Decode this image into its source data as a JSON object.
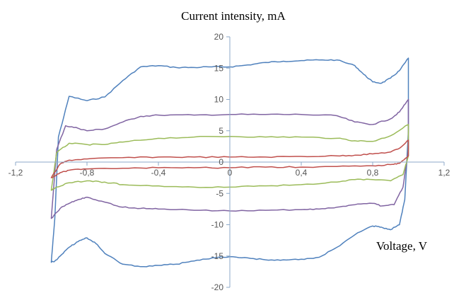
{
  "chart_data": {
    "type": "line",
    "title": "",
    "xlabel": "Voltage, V",
    "ylabel": "Current intensity, mA",
    "xlim": [
      -1.2,
      1.2
    ],
    "ylim": [
      -20,
      20
    ],
    "x_tick_labels": [
      "-1,2",
      "-0,8",
      "-0,4",
      "0",
      "0,4",
      "0,8",
      "1,2"
    ],
    "y_tick_labels": [
      "20",
      "15",
      "10",
      "5",
      "0",
      "-5",
      "-10",
      "-15",
      "-20"
    ],
    "grid": false,
    "legend": "none",
    "colors": {
      "axis": "#8eaac8",
      "blue": "#4f81bd",
      "purple": "#8064a2",
      "green": "#9bbb59",
      "red": "#c0504d"
    },
    "series": [
      {
        "color": "blue",
        "x": [
          -1.0,
          -0.98,
          -0.96,
          -0.9,
          -0.8,
          -0.7,
          -0.6,
          -0.5,
          -0.4,
          -0.3,
          -0.2,
          -0.1,
          0.0,
          0.1,
          0.2,
          0.3,
          0.4,
          0.5,
          0.6,
          0.7,
          0.75,
          0.8,
          0.85,
          0.9,
          0.95,
          1.0,
          1.0,
          0.98,
          0.95,
          0.9,
          0.85,
          0.8,
          0.7,
          0.6,
          0.5,
          0.4,
          0.3,
          0.2,
          0.1,
          0.0,
          -0.1,
          -0.2,
          -0.3,
          -0.4,
          -0.5,
          -0.6,
          -0.7,
          -0.75,
          -0.8,
          -0.85,
          -0.9,
          -0.95,
          -0.98,
          -1.0
        ],
        "y": [
          -16.0,
          -9.0,
          4.0,
          10.5,
          9.8,
          10.4,
          13.0,
          15.2,
          15.4,
          15.1,
          15.1,
          15.2,
          15.2,
          15.5,
          15.9,
          16.1,
          16.2,
          16.3,
          16.3,
          15.4,
          14.0,
          12.8,
          12.6,
          13.4,
          14.6,
          16.6,
          5.0,
          -6.0,
          -10.0,
          -10.8,
          -10.4,
          -10.2,
          -11.6,
          -13.6,
          -15.2,
          -15.5,
          -15.6,
          -15.6,
          -15.3,
          -15.1,
          -15.3,
          -15.8,
          -16.3,
          -16.5,
          -16.7,
          -16.3,
          -14.6,
          -13.0,
          -12.1,
          -12.7,
          -13.6,
          -15.0,
          -15.8,
          -16.0
        ]
      },
      {
        "color": "purple",
        "x": [
          -1.0,
          -0.97,
          -0.92,
          -0.85,
          -0.8,
          -0.7,
          -0.6,
          -0.5,
          -0.4,
          -0.2,
          0.0,
          0.2,
          0.4,
          0.6,
          0.7,
          0.8,
          0.9,
          0.95,
          1.0,
          1.0,
          0.97,
          0.92,
          0.85,
          0.8,
          0.7,
          0.6,
          0.5,
          0.4,
          0.2,
          0.0,
          -0.2,
          -0.4,
          -0.5,
          -0.6,
          -0.7,
          -0.8,
          -0.85,
          -0.9,
          -0.95,
          -1.0
        ],
        "y": [
          -9.0,
          2.0,
          5.8,
          5.4,
          5.0,
          5.3,
          6.4,
          7.3,
          7.5,
          7.5,
          7.6,
          7.6,
          7.6,
          7.4,
          6.4,
          6.0,
          6.9,
          8.0,
          10.0,
          2.0,
          -4.0,
          -6.8,
          -7.0,
          -6.6,
          -6.8,
          -7.2,
          -7.5,
          -7.6,
          -7.7,
          -7.8,
          -7.7,
          -7.5,
          -7.4,
          -7.2,
          -6.4,
          -5.6,
          -6.0,
          -6.6,
          -7.4,
          -9.0
        ]
      },
      {
        "color": "green",
        "x": [
          -1.0,
          -0.97,
          -0.9,
          -0.8,
          -0.7,
          -0.6,
          -0.4,
          -0.2,
          0.0,
          0.2,
          0.4,
          0.6,
          0.7,
          0.8,
          0.9,
          1.0,
          1.0,
          0.97,
          0.9,
          0.8,
          0.7,
          0.6,
          0.4,
          0.2,
          0.0,
          -0.2,
          -0.4,
          -0.6,
          -0.7,
          -0.8,
          -0.9,
          -0.97,
          -1.0
        ],
        "y": [
          -4.5,
          1.5,
          3.0,
          2.8,
          2.8,
          3.2,
          3.8,
          4.0,
          4.1,
          4.0,
          4.0,
          3.8,
          3.4,
          3.3,
          4.2,
          6.0,
          1.0,
          -2.0,
          -3.0,
          -2.8,
          -2.8,
          -3.2,
          -3.6,
          -3.8,
          -4.0,
          -4.0,
          -3.8,
          -3.6,
          -3.2,
          -3.0,
          -3.3,
          -4.0,
          -4.5
        ]
      },
      {
        "color": "red",
        "x": [
          -1.0,
          -0.95,
          -0.9,
          -0.8,
          -0.6,
          -0.4,
          -0.2,
          0.0,
          0.2,
          0.4,
          0.6,
          0.7,
          0.8,
          0.9,
          0.95,
          1.0,
          1.0,
          0.95,
          0.9,
          0.8,
          0.6,
          0.4,
          0.2,
          0.0,
          -0.2,
          -0.4,
          -0.6,
          -0.8,
          -0.9,
          -0.95,
          -1.0
        ],
        "y": [
          -2.5,
          -0.3,
          0.3,
          0.5,
          0.7,
          0.8,
          0.8,
          0.8,
          0.8,
          0.9,
          1.0,
          1.1,
          1.3,
          1.6,
          2.2,
          3.5,
          1.0,
          -0.2,
          -0.4,
          -0.6,
          -0.7,
          -0.8,
          -0.8,
          -0.9,
          -0.9,
          -0.9,
          -1.0,
          -1.1,
          -1.3,
          -1.7,
          -2.5
        ]
      }
    ]
  }
}
